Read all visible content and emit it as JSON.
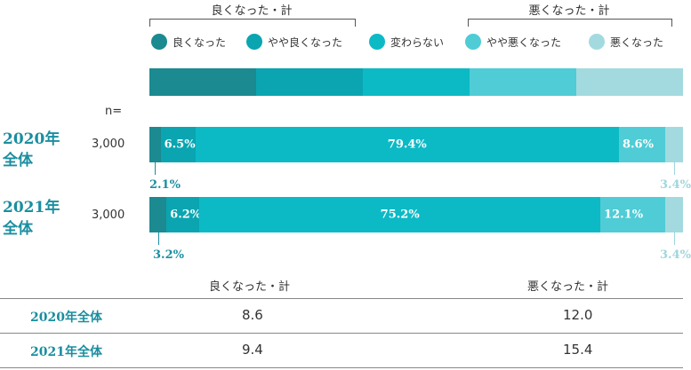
{
  "colors": {
    "better": "#1b8a91",
    "somewhat_better": "#0aa5b1",
    "same": "#0cbac6",
    "somewhat_worse": "#4fccd5",
    "worse": "#a3dadf",
    "label_teal": "#1a8ea0",
    "label_light": "#9fd6dc"
  },
  "groups": {
    "better_total": "良くなった・計",
    "worse_total": "悪くなった・計"
  },
  "legend": [
    "良くなった",
    "やや良くなった",
    "変わらない",
    "やや悪くなった",
    "悪くなった"
  ],
  "n_label": "n=",
  "chart_data": {
    "type": "bar",
    "orientation": "horizontal",
    "stacked": true,
    "percent": true,
    "categories": [
      "2020年全体",
      "2021年全体"
    ],
    "n": [
      "3,000",
      "3,000"
    ],
    "series": [
      {
        "name": "良くなった",
        "values": [
          2.1,
          3.2
        ]
      },
      {
        "name": "やや良くなった",
        "values": [
          6.5,
          6.2
        ]
      },
      {
        "name": "変わらない",
        "values": [
          79.4,
          75.2
        ]
      },
      {
        "name": "やや悪くなった",
        "values": [
          8.6,
          12.1
        ]
      },
      {
        "name": "悪くなった",
        "values": [
          3.4,
          3.4
        ]
      }
    ],
    "value_labels": [
      [
        "2.1%",
        "6.5%",
        "79.4%",
        "8.6%",
        "3.4%"
      ],
      [
        "3.2%",
        "6.2%",
        "75.2%",
        "12.1%",
        "3.4%"
      ]
    ],
    "row_labels": [
      [
        "2020年",
        "全体"
      ],
      [
        "2021年",
        "全体"
      ]
    ]
  },
  "table": {
    "headers": [
      "良くなった・計",
      "悪くなった・計"
    ],
    "rows": [
      {
        "label": "2020年全体",
        "better": "8.6",
        "worse": "12.0"
      },
      {
        "label": "2021年全体",
        "better": "9.4",
        "worse": "15.4"
      }
    ]
  }
}
